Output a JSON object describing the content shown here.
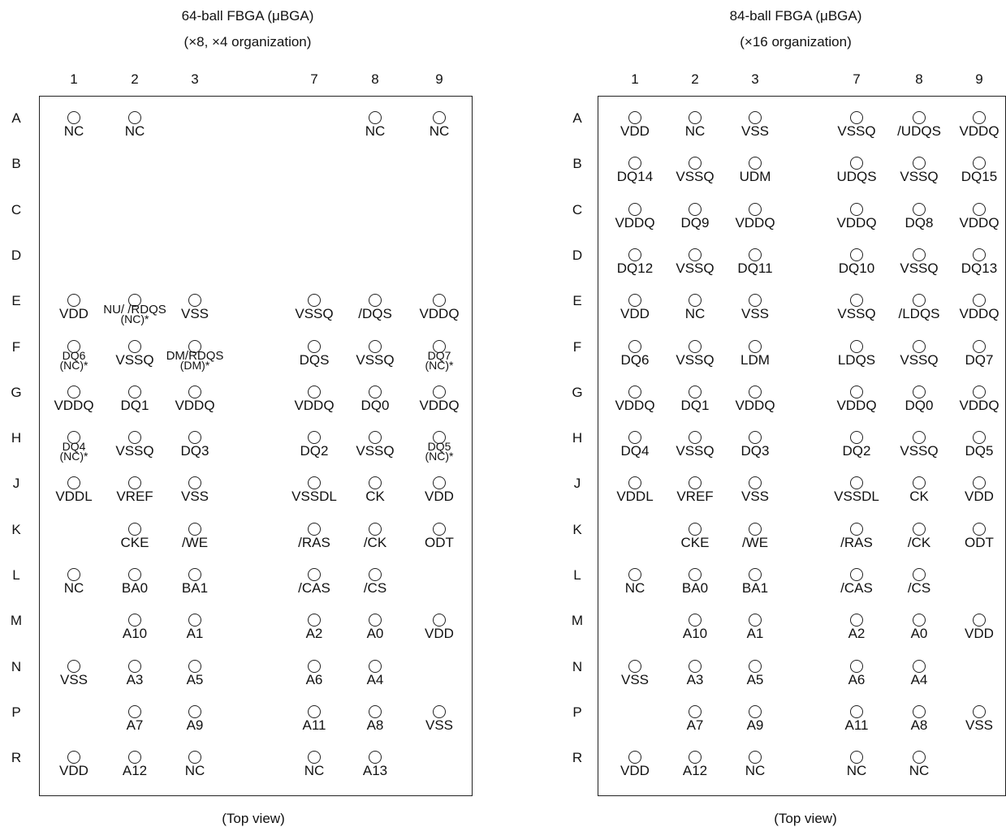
{
  "packages": [
    {
      "id": "pkg64",
      "title": "64-ball FBGA (μBGA)",
      "subtitle": "(×8, ×4 organization)",
      "footer": "(Top view)",
      "columns": [
        "1",
        "2",
        "3",
        "7",
        "8",
        "9"
      ],
      "rows": [
        "A",
        "B",
        "C",
        "D",
        "E",
        "F",
        "G",
        "H",
        "J",
        "K",
        "L",
        "M",
        "N",
        "P",
        "R"
      ],
      "balls": [
        {
          "row": "A",
          "col": "1",
          "label": "NC"
        },
        {
          "row": "A",
          "col": "2",
          "label": "NC"
        },
        {
          "row": "A",
          "col": "8",
          "label": "NC"
        },
        {
          "row": "A",
          "col": "9",
          "label": "NC"
        },
        {
          "row": "E",
          "col": "1",
          "label": "VDD"
        },
        {
          "row": "E",
          "col": "2",
          "label": "NU/ /RDQS",
          "note": "(NC)*"
        },
        {
          "row": "E",
          "col": "3",
          "label": "VSS"
        },
        {
          "row": "E",
          "col": "7",
          "label": "VSSQ"
        },
        {
          "row": "E",
          "col": "8",
          "label": "/DQS"
        },
        {
          "row": "E",
          "col": "9",
          "label": "VDDQ"
        },
        {
          "row": "F",
          "col": "1",
          "label": "DQ6",
          "note": "(NC)*"
        },
        {
          "row": "F",
          "col": "2",
          "label": "VSSQ"
        },
        {
          "row": "F",
          "col": "3",
          "label": "DM/RDQS",
          "note": "(DM)*"
        },
        {
          "row": "F",
          "col": "7",
          "label": "DQS"
        },
        {
          "row": "F",
          "col": "8",
          "label": "VSSQ"
        },
        {
          "row": "F",
          "col": "9",
          "label": "DQ7",
          "note": "(NC)*"
        },
        {
          "row": "G",
          "col": "1",
          "label": "VDDQ"
        },
        {
          "row": "G",
          "col": "2",
          "label": "DQ1"
        },
        {
          "row": "G",
          "col": "3",
          "label": "VDDQ"
        },
        {
          "row": "G",
          "col": "7",
          "label": "VDDQ"
        },
        {
          "row": "G",
          "col": "8",
          "label": "DQ0"
        },
        {
          "row": "G",
          "col": "9",
          "label": "VDDQ"
        },
        {
          "row": "H",
          "col": "1",
          "label": "DQ4",
          "note": "(NC)*"
        },
        {
          "row": "H",
          "col": "2",
          "label": "VSSQ"
        },
        {
          "row": "H",
          "col": "3",
          "label": "DQ3"
        },
        {
          "row": "H",
          "col": "7",
          "label": "DQ2"
        },
        {
          "row": "H",
          "col": "8",
          "label": "VSSQ"
        },
        {
          "row": "H",
          "col": "9",
          "label": "DQ5",
          "note": "(NC)*"
        },
        {
          "row": "J",
          "col": "1",
          "label": "VDDL"
        },
        {
          "row": "J",
          "col": "2",
          "label": "VREF"
        },
        {
          "row": "J",
          "col": "3",
          "label": "VSS"
        },
        {
          "row": "J",
          "col": "7",
          "label": "VSSDL"
        },
        {
          "row": "J",
          "col": "8",
          "label": "CK"
        },
        {
          "row": "J",
          "col": "9",
          "label": "VDD"
        },
        {
          "row": "K",
          "col": "2",
          "label": "CKE"
        },
        {
          "row": "K",
          "col": "3",
          "label": "/WE"
        },
        {
          "row": "K",
          "col": "7",
          "label": "/RAS"
        },
        {
          "row": "K",
          "col": "8",
          "label": "/CK"
        },
        {
          "row": "K",
          "col": "9",
          "label": "ODT"
        },
        {
          "row": "L",
          "col": "1",
          "label": "NC"
        },
        {
          "row": "L",
          "col": "2",
          "label": "BA0"
        },
        {
          "row": "L",
          "col": "3",
          "label": "BA1"
        },
        {
          "row": "L",
          "col": "7",
          "label": "/CAS"
        },
        {
          "row": "L",
          "col": "8",
          "label": "/CS"
        },
        {
          "row": "M",
          "col": "2",
          "label": "A10"
        },
        {
          "row": "M",
          "col": "3",
          "label": "A1"
        },
        {
          "row": "M",
          "col": "7",
          "label": "A2"
        },
        {
          "row": "M",
          "col": "8",
          "label": "A0"
        },
        {
          "row": "M",
          "col": "9",
          "label": "VDD"
        },
        {
          "row": "N",
          "col": "1",
          "label": "VSS"
        },
        {
          "row": "N",
          "col": "2",
          "label": "A3"
        },
        {
          "row": "N",
          "col": "3",
          "label": "A5"
        },
        {
          "row": "N",
          "col": "7",
          "label": "A6"
        },
        {
          "row": "N",
          "col": "8",
          "label": "A4"
        },
        {
          "row": "P",
          "col": "2",
          "label": "A7"
        },
        {
          "row": "P",
          "col": "3",
          "label": "A9"
        },
        {
          "row": "P",
          "col": "7",
          "label": "A11"
        },
        {
          "row": "P",
          "col": "8",
          "label": "A8"
        },
        {
          "row": "P",
          "col": "9",
          "label": "VSS"
        },
        {
          "row": "R",
          "col": "1",
          "label": "VDD"
        },
        {
          "row": "R",
          "col": "2",
          "label": "A12"
        },
        {
          "row": "R",
          "col": "3",
          "label": "NC"
        },
        {
          "row": "R",
          "col": "7",
          "label": "NC"
        },
        {
          "row": "R",
          "col": "8",
          "label": "A13"
        }
      ]
    },
    {
      "id": "pkg84",
      "title": "84-ball FBGA (μBGA)",
      "subtitle": "(×16 organization)",
      "footer": "(Top view)",
      "columns": [
        "1",
        "2",
        "3",
        "7",
        "8",
        "9"
      ],
      "rows": [
        "A",
        "B",
        "C",
        "D",
        "E",
        "F",
        "G",
        "H",
        "J",
        "K",
        "L",
        "M",
        "N",
        "P",
        "R"
      ],
      "balls": [
        {
          "row": "A",
          "col": "1",
          "label": "VDD"
        },
        {
          "row": "A",
          "col": "2",
          "label": "NC"
        },
        {
          "row": "A",
          "col": "3",
          "label": "VSS"
        },
        {
          "row": "A",
          "col": "7",
          "label": "VSSQ"
        },
        {
          "row": "A",
          "col": "8",
          "label": "/UDQS"
        },
        {
          "row": "A",
          "col": "9",
          "label": "VDDQ"
        },
        {
          "row": "B",
          "col": "1",
          "label": "DQ14"
        },
        {
          "row": "B",
          "col": "2",
          "label": "VSSQ"
        },
        {
          "row": "B",
          "col": "3",
          "label": "UDM"
        },
        {
          "row": "B",
          "col": "7",
          "label": "UDQS"
        },
        {
          "row": "B",
          "col": "8",
          "label": "VSSQ"
        },
        {
          "row": "B",
          "col": "9",
          "label": "DQ15"
        },
        {
          "row": "C",
          "col": "1",
          "label": "VDDQ"
        },
        {
          "row": "C",
          "col": "2",
          "label": "DQ9"
        },
        {
          "row": "C",
          "col": "3",
          "label": "VDDQ"
        },
        {
          "row": "C",
          "col": "7",
          "label": "VDDQ"
        },
        {
          "row": "C",
          "col": "8",
          "label": "DQ8"
        },
        {
          "row": "C",
          "col": "9",
          "label": "VDDQ"
        },
        {
          "row": "D",
          "col": "1",
          "label": "DQ12"
        },
        {
          "row": "D",
          "col": "2",
          "label": "VSSQ"
        },
        {
          "row": "D",
          "col": "3",
          "label": "DQ11"
        },
        {
          "row": "D",
          "col": "7",
          "label": "DQ10"
        },
        {
          "row": "D",
          "col": "8",
          "label": "VSSQ"
        },
        {
          "row": "D",
          "col": "9",
          "label": "DQ13"
        },
        {
          "row": "E",
          "col": "1",
          "label": "VDD"
        },
        {
          "row": "E",
          "col": "2",
          "label": "NC"
        },
        {
          "row": "E",
          "col": "3",
          "label": "VSS"
        },
        {
          "row": "E",
          "col": "7",
          "label": "VSSQ"
        },
        {
          "row": "E",
          "col": "8",
          "label": "/LDQS"
        },
        {
          "row": "E",
          "col": "9",
          "label": "VDDQ"
        },
        {
          "row": "F",
          "col": "1",
          "label": "DQ6"
        },
        {
          "row": "F",
          "col": "2",
          "label": "VSSQ"
        },
        {
          "row": "F",
          "col": "3",
          "label": "LDM"
        },
        {
          "row": "F",
          "col": "7",
          "label": "LDQS"
        },
        {
          "row": "F",
          "col": "8",
          "label": "VSSQ"
        },
        {
          "row": "F",
          "col": "9",
          "label": "DQ7"
        },
        {
          "row": "G",
          "col": "1",
          "label": "VDDQ"
        },
        {
          "row": "G",
          "col": "2",
          "label": "DQ1"
        },
        {
          "row": "G",
          "col": "3",
          "label": "VDDQ"
        },
        {
          "row": "G",
          "col": "7",
          "label": "VDDQ"
        },
        {
          "row": "G",
          "col": "8",
          "label": "DQ0"
        },
        {
          "row": "G",
          "col": "9",
          "label": "VDDQ"
        },
        {
          "row": "H",
          "col": "1",
          "label": "DQ4"
        },
        {
          "row": "H",
          "col": "2",
          "label": "VSSQ"
        },
        {
          "row": "H",
          "col": "3",
          "label": "DQ3"
        },
        {
          "row": "H",
          "col": "7",
          "label": "DQ2"
        },
        {
          "row": "H",
          "col": "8",
          "label": "VSSQ"
        },
        {
          "row": "H",
          "col": "9",
          "label": "DQ5"
        },
        {
          "row": "J",
          "col": "1",
          "label": "VDDL"
        },
        {
          "row": "J",
          "col": "2",
          "label": "VREF"
        },
        {
          "row": "J",
          "col": "3",
          "label": "VSS"
        },
        {
          "row": "J",
          "col": "7",
          "label": "VSSDL"
        },
        {
          "row": "J",
          "col": "8",
          "label": "CK"
        },
        {
          "row": "J",
          "col": "9",
          "label": "VDD"
        },
        {
          "row": "K",
          "col": "2",
          "label": "CKE"
        },
        {
          "row": "K",
          "col": "3",
          "label": "/WE"
        },
        {
          "row": "K",
          "col": "7",
          "label": "/RAS"
        },
        {
          "row": "K",
          "col": "8",
          "label": "/CK"
        },
        {
          "row": "K",
          "col": "9",
          "label": "ODT"
        },
        {
          "row": "L",
          "col": "1",
          "label": "NC"
        },
        {
          "row": "L",
          "col": "2",
          "label": "BA0"
        },
        {
          "row": "L",
          "col": "3",
          "label": "BA1"
        },
        {
          "row": "L",
          "col": "7",
          "label": "/CAS"
        },
        {
          "row": "L",
          "col": "8",
          "label": "/CS"
        },
        {
          "row": "M",
          "col": "2",
          "label": "A10"
        },
        {
          "row": "M",
          "col": "3",
          "label": "A1"
        },
        {
          "row": "M",
          "col": "7",
          "label": "A2"
        },
        {
          "row": "M",
          "col": "8",
          "label": "A0"
        },
        {
          "row": "M",
          "col": "9",
          "label": "VDD"
        },
        {
          "row": "N",
          "col": "1",
          "label": "VSS"
        },
        {
          "row": "N",
          "col": "2",
          "label": "A3"
        },
        {
          "row": "N",
          "col": "3",
          "label": "A5"
        },
        {
          "row": "N",
          "col": "7",
          "label": "A6"
        },
        {
          "row": "N",
          "col": "8",
          "label": "A4"
        },
        {
          "row": "P",
          "col": "2",
          "label": "A7"
        },
        {
          "row": "P",
          "col": "3",
          "label": "A9"
        },
        {
          "row": "P",
          "col": "7",
          "label": "A11"
        },
        {
          "row": "P",
          "col": "8",
          "label": "A8"
        },
        {
          "row": "P",
          "col": "9",
          "label": "VSS"
        },
        {
          "row": "R",
          "col": "1",
          "label": "VDD"
        },
        {
          "row": "R",
          "col": "2",
          "label": "A12"
        },
        {
          "row": "R",
          "col": "3",
          "label": "NC"
        },
        {
          "row": "R",
          "col": "7",
          "label": "NC"
        },
        {
          "row": "R",
          "col": "8",
          "label": "NC"
        }
      ]
    }
  ]
}
